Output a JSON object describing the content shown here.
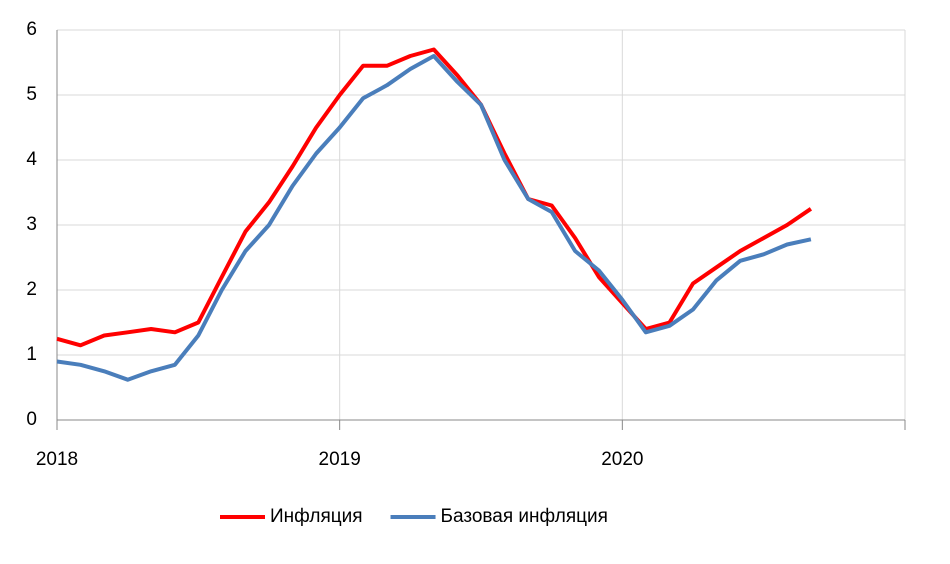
{
  "chart_data": {
    "type": "line",
    "x": [
      2018,
      2018.083,
      2018.167,
      2018.25,
      2018.333,
      2018.417,
      2018.5,
      2018.583,
      2018.667,
      2018.75,
      2018.833,
      2018.917,
      2019,
      2019.083,
      2019.167,
      2019.25,
      2019.333,
      2019.417,
      2019.5,
      2019.583,
      2019.667,
      2019.75,
      2019.833,
      2019.917,
      2020,
      2020.083,
      2020.167,
      2020.25,
      2020.333,
      2020.417,
      2020.5,
      2020.583,
      2020.667
    ],
    "series": [
      {
        "name": "Инфляция",
        "color": "#ff0000",
        "values": [
          1.25,
          1.15,
          1.3,
          1.35,
          1.4,
          1.35,
          1.5,
          2.2,
          2.9,
          3.35,
          3.9,
          4.5,
          5.0,
          5.45,
          5.45,
          5.6,
          5.7,
          5.3,
          4.85,
          4.1,
          3.4,
          3.3,
          2.8,
          2.2,
          1.8,
          1.4,
          1.5,
          2.1,
          2.35,
          2.6,
          2.8,
          3.0,
          3.25
        ]
      },
      {
        "name": "Базовая инфляция",
        "color": "#4a7ebb",
        "values": [
          0.9,
          0.85,
          0.75,
          0.62,
          0.75,
          0.85,
          1.3,
          2.0,
          2.6,
          3.0,
          3.6,
          4.1,
          4.5,
          4.95,
          5.15,
          5.4,
          5.6,
          5.2,
          4.85,
          4.0,
          3.4,
          3.2,
          2.6,
          2.3,
          1.85,
          1.35,
          1.45,
          1.7,
          2.15,
          2.45,
          2.55,
          2.7,
          2.78
        ]
      }
    ],
    "xlim": [
      2018,
      2021
    ],
    "xticks": [
      2018,
      2019,
      2020
    ],
    "ylim": [
      0,
      6
    ],
    "yticks": [
      0,
      1,
      2,
      3,
      4,
      5,
      6
    ],
    "grid": true,
    "legend": "bottom"
  }
}
